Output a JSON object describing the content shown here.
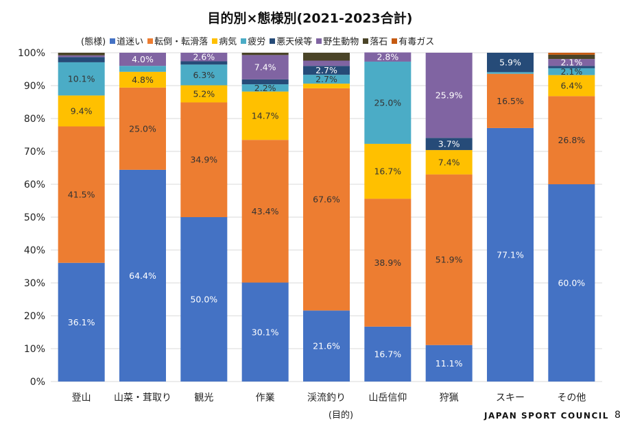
{
  "chart_data": {
    "type": "stacked-bar-100",
    "title": "目的別×態様別(2021-2023合計)",
    "legend_title": "(態様)",
    "legend_position": "top",
    "xlabel": "(目的)",
    "ylabel": "",
    "ylim": [
      0,
      100
    ],
    "yticks": [
      "0%",
      "10%",
      "20%",
      "30%",
      "40%",
      "50%",
      "60%",
      "70%",
      "80%",
      "90%",
      "100%"
    ],
    "grid": true,
    "categories": [
      "登山",
      "山菜・茸取り",
      "観光",
      "作業",
      "渓流釣り",
      "山岳信仰",
      "狩猟",
      "スキー",
      "その他"
    ],
    "series": [
      {
        "name": "道迷い",
        "color": "#4472c4",
        "label_color": "#ffffff",
        "values": [
          36.1,
          64.4,
          50.0,
          30.1,
          21.6,
          16.7,
          11.1,
          77.1,
          60.0
        ],
        "labels": [
          "36.1%",
          "64.4%",
          "50.0%",
          "30.1%",
          "21.6%",
          "16.7%",
          "11.1%",
          "77.1%",
          "60.0%"
        ]
      },
      {
        "name": "転倒・転滑落",
        "color": "#ed7d31",
        "label_color": "#333333",
        "values": [
          41.5,
          25.0,
          34.9,
          43.4,
          67.6,
          38.9,
          51.9,
          16.5,
          26.8
        ],
        "labels": [
          "41.5%",
          "25.0%",
          "34.9%",
          "43.4%",
          "67.6%",
          "38.9%",
          "51.9%",
          "16.5%",
          "26.8%"
        ]
      },
      {
        "name": "病気",
        "color": "#ffc000",
        "label_color": "#333333",
        "values": [
          9.4,
          4.8,
          5.2,
          14.7,
          1.4,
          16.7,
          7.4,
          0,
          6.4
        ],
        "labels": [
          "9.4%",
          "4.8%",
          "5.2%",
          "14.7%",
          null,
          "16.7%",
          "7.4%",
          null,
          "6.4%"
        ]
      },
      {
        "name": "疲労",
        "color": "#4bacc6",
        "label_color": "#333333",
        "values": [
          10.1,
          1.8,
          6.3,
          2.2,
          2.7,
          25.0,
          0,
          0.5,
          2.1
        ],
        "labels": [
          "10.1%",
          null,
          "6.3%",
          "2.2%",
          "2.7%",
          "25.0%",
          null,
          null,
          "2.1%"
        ]
      },
      {
        "name": "悪天候等",
        "color": "#264b78",
        "label_color": "#ffffff",
        "values": [
          1.6,
          0,
          1.0,
          1.5,
          2.7,
          0,
          3.7,
          5.9,
          0.7
        ],
        "labels": [
          null,
          null,
          null,
          null,
          "2.7%",
          null,
          "3.7%",
          "5.9%",
          null
        ]
      },
      {
        "name": "野生動物",
        "color": "#8064a2",
        "label_color": "#ffffff",
        "values": [
          0.5,
          4.0,
          2.6,
          7.4,
          1.6,
          2.8,
          25.9,
          0,
          2.1
        ],
        "labels": [
          null,
          "4.0%",
          "2.6%",
          "7.4%",
          null,
          "2.8%",
          "25.9%",
          null,
          "2.1%"
        ]
      },
      {
        "name": "落石",
        "color": "#4a4428",
        "label_color": "#ffffff",
        "values": [
          0.8,
          0,
          0,
          0.7,
          2.4,
          0,
          0,
          0,
          1.3
        ],
        "labels": [
          null,
          null,
          null,
          null,
          null,
          null,
          null,
          null,
          null
        ]
      },
      {
        "name": "有毒ガス",
        "color": "#c55a11",
        "label_color": "#ffffff",
        "values": [
          0,
          0,
          0,
          0,
          0,
          0,
          0,
          0,
          0.6
        ],
        "labels": [
          null,
          null,
          null,
          null,
          null,
          null,
          null,
          null,
          null
        ]
      }
    ]
  },
  "footer": {
    "org": "JAPAN SPORT COUNCIL",
    "page": "8"
  }
}
